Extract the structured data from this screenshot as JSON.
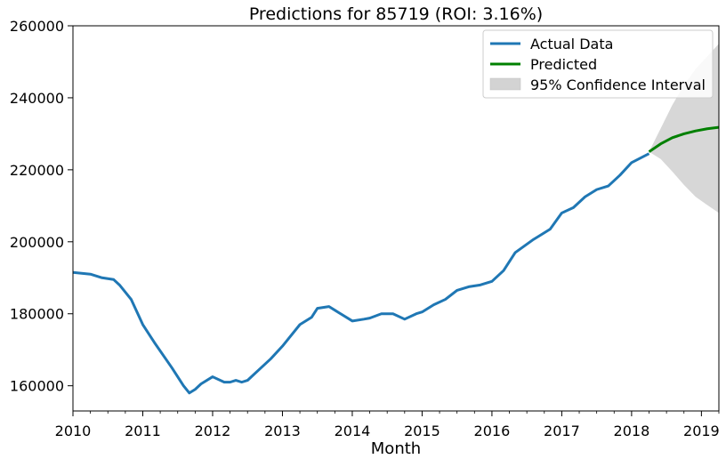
{
  "chart_data": {
    "type": "line",
    "title": "Predictions for 85719 (ROI: 3.16%)",
    "xlabel": "Month",
    "ylabel": "",
    "xlim": [
      "2010-01",
      "2019-04"
    ],
    "ylim": [
      153000,
      260000
    ],
    "x_ticks": [
      "2010",
      "2011",
      "2012",
      "2013",
      "2014",
      "2015",
      "2016",
      "2017",
      "2018",
      "2019"
    ],
    "y_ticks": [
      160000,
      180000,
      200000,
      220000,
      240000,
      260000
    ],
    "grid": false,
    "legend_position": "top-right",
    "legend": [
      "Actual Data",
      "Predicted",
      "95% Confidence Interval"
    ],
    "colors": {
      "actual": "#1f77b4",
      "predicted": "#008000",
      "ci": "#d3d3d3"
    },
    "series": [
      {
        "name": "Actual Data",
        "x": [
          "2010-01",
          "2010-04",
          "2010-06",
          "2010-08",
          "2010-09",
          "2010-10",
          "2010-11",
          "2011-01",
          "2011-03",
          "2011-06",
          "2011-08",
          "2011-09",
          "2011-10",
          "2011-11",
          "2012-01",
          "2012-03",
          "2012-04",
          "2012-05",
          "2012-06",
          "2012-07",
          "2012-08",
          "2012-09",
          "2012-11",
          "2013-01",
          "2013-04",
          "2013-06",
          "2013-07",
          "2013-09",
          "2013-10",
          "2013-11",
          "2014-01",
          "2014-03",
          "2014-04",
          "2014-06",
          "2014-08",
          "2014-10",
          "2014-12",
          "2015-01",
          "2015-03",
          "2015-05",
          "2015-07",
          "2015-09",
          "2015-11",
          "2016-01",
          "2016-03",
          "2016-05",
          "2016-08",
          "2016-09",
          "2016-11",
          "2017-01",
          "2017-03",
          "2017-05",
          "2017-07",
          "2017-09",
          "2017-11",
          "2018-01",
          "2018-04"
        ],
        "values": [
          191500,
          191000,
          190000,
          189500,
          188000,
          186000,
          184000,
          177000,
          172000,
          165000,
          160000,
          158000,
          159000,
          160500,
          162500,
          161000,
          161000,
          161500,
          161000,
          161500,
          163000,
          164500,
          167500,
          171000,
          177000,
          179000,
          181500,
          182000,
          181000,
          180000,
          178000,
          178500,
          178800,
          180000,
          180000,
          178500,
          180000,
          180500,
          182500,
          184000,
          186500,
          187500,
          188000,
          189000,
          192000,
          197000,
          200500,
          201500,
          203500,
          208000,
          209500,
          212500,
          214500,
          215500,
          218500,
          222000,
          224500
        ]
      },
      {
        "name": "Predicted",
        "x": [
          "2018-04",
          "2018-06",
          "2018-08",
          "2018-10",
          "2018-12",
          "2019-02",
          "2019-04"
        ],
        "values": [
          225000,
          227200,
          228900,
          230000,
          230800,
          231400,
          231800
        ]
      }
    ],
    "confidence_interval": {
      "name": "95% Confidence Interval",
      "x": [
        "2018-04",
        "2018-06",
        "2018-08",
        "2018-10",
        "2018-12",
        "2019-02",
        "2019-04"
      ],
      "lower": [
        225000,
        223000,
        219500,
        215800,
        212500,
        210200,
        208000
      ],
      "upper": [
        225000,
        231500,
        238000,
        243500,
        248000,
        251500,
        255000
      ]
    }
  }
}
